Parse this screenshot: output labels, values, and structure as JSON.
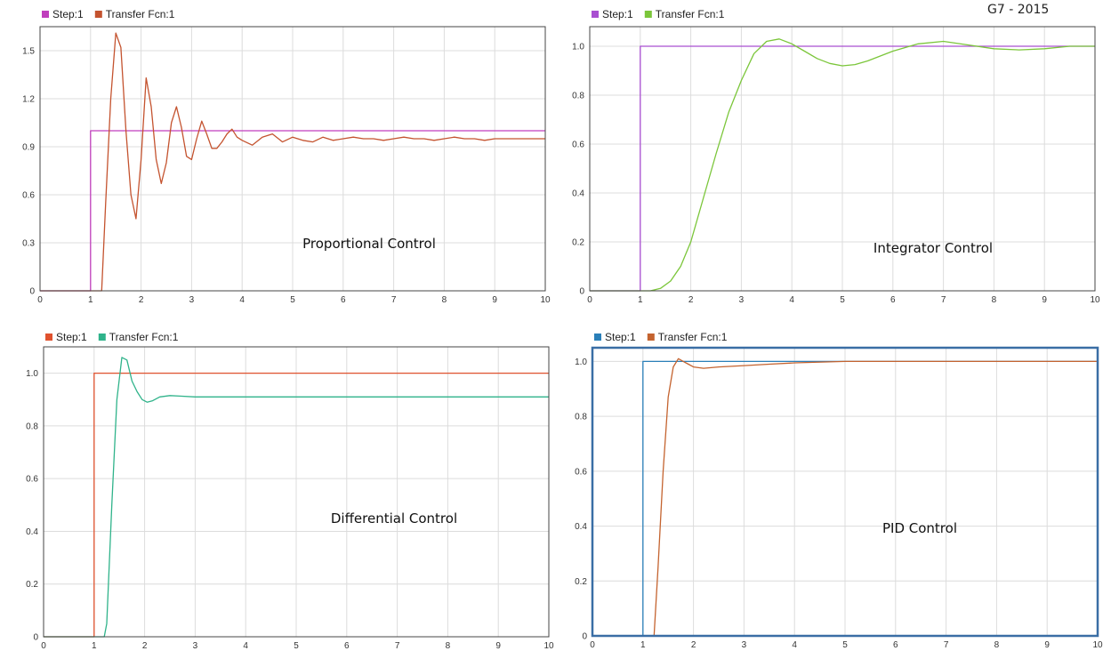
{
  "header": {
    "watermark": "G7 - 2015"
  },
  "chart_data": [
    {
      "type": "line",
      "title": "",
      "annotation": "Proportional Control",
      "xlim": [
        0,
        10
      ],
      "ylim": [
        0,
        1.65
      ],
      "xticks": [
        0,
        1,
        2,
        3,
        4,
        5,
        6,
        7,
        8,
        9,
        10
      ],
      "yticks": [
        0,
        0.3,
        0.6,
        0.9,
        1.2,
        1.5
      ],
      "ytick_labels": [
        "0",
        "0.3",
        "0.6",
        "0.9",
        "1.2",
        "1.5"
      ],
      "grid": true,
      "legend": "top-left",
      "series": [
        {
          "name": "Step:1",
          "color": "#c03fbd",
          "x": [
            0,
            1,
            1,
            10
          ],
          "y": [
            0,
            0,
            1,
            1
          ]
        },
        {
          "name": "Transfer Fcn:1",
          "color": "#c4532f",
          "x": [
            0,
            1.22,
            1.3,
            1.4,
            1.5,
            1.6,
            1.7,
            1.8,
            1.9,
            2.0,
            2.1,
            2.2,
            2.3,
            2.4,
            2.5,
            2.6,
            2.7,
            2.8,
            2.9,
            3.0,
            3.1,
            3.2,
            3.3,
            3.4,
            3.5,
            3.6,
            3.7,
            3.8,
            3.9,
            4.0,
            4.2,
            4.4,
            4.6,
            4.8,
            5.0,
            5.2,
            5.4,
            5.6,
            5.8,
            6.0,
            6.2,
            6.4,
            6.6,
            6.8,
            7.0,
            7.2,
            7.4,
            7.6,
            7.8,
            8.0,
            8.2,
            8.4,
            8.6,
            8.8,
            9.0,
            9.2,
            9.4,
            9.6,
            9.8,
            10
          ],
          "y": [
            0,
            0,
            0.55,
            1.2,
            1.61,
            1.52,
            1.0,
            0.6,
            0.45,
            0.82,
            1.33,
            1.15,
            0.82,
            0.67,
            0.8,
            1.05,
            1.15,
            1.02,
            0.84,
            0.82,
            0.95,
            1.06,
            0.98,
            0.89,
            0.89,
            0.93,
            0.98,
            1.01,
            0.96,
            0.94,
            0.91,
            0.96,
            0.98,
            0.93,
            0.96,
            0.94,
            0.93,
            0.96,
            0.94,
            0.95,
            0.96,
            0.95,
            0.95,
            0.94,
            0.95,
            0.96,
            0.95,
            0.95,
            0.94,
            0.95,
            0.96,
            0.95,
            0.95,
            0.94,
            0.95,
            0.95,
            0.95,
            0.95,
            0.95,
            0.95
          ]
        }
      ]
    },
    {
      "type": "line",
      "title": "",
      "annotation": "Integrator Control",
      "xlim": [
        0,
        10
      ],
      "ylim": [
        0,
        1.08
      ],
      "xticks": [
        0,
        1,
        2,
        3,
        4,
        5,
        6,
        7,
        8,
        9,
        10
      ],
      "yticks": [
        0,
        0.2,
        0.4,
        0.6,
        0.8,
        1.0
      ],
      "ytick_labels": [
        "0",
        "0.2",
        "0.4",
        "0.6",
        "0.8",
        "1.0"
      ],
      "grid": true,
      "legend": "top-left",
      "series": [
        {
          "name": "Step:1",
          "color": "#a94fd1",
          "x": [
            0,
            1,
            1,
            10
          ],
          "y": [
            0,
            0,
            1,
            1
          ]
        },
        {
          "name": "Transfer Fcn:1",
          "color": "#7bc63a",
          "x": [
            0,
            1.2,
            1.4,
            1.6,
            1.8,
            2.0,
            2.25,
            2.5,
            2.75,
            3.0,
            3.25,
            3.5,
            3.75,
            4.0,
            4.25,
            4.5,
            4.75,
            5.0,
            5.25,
            5.5,
            5.75,
            6.0,
            6.5,
            7.0,
            7.5,
            8.0,
            8.5,
            9.0,
            9.5,
            10
          ],
          "y": [
            0,
            0.0,
            0.01,
            0.04,
            0.1,
            0.2,
            0.38,
            0.56,
            0.73,
            0.86,
            0.97,
            1.02,
            1.03,
            1.01,
            0.98,
            0.95,
            0.93,
            0.92,
            0.925,
            0.94,
            0.96,
            0.98,
            1.01,
            1.02,
            1.005,
            0.99,
            0.985,
            0.99,
            1.0,
            1.0
          ]
        }
      ]
    },
    {
      "type": "line",
      "title": "",
      "annotation": "Differential Control",
      "xlim": [
        0,
        10
      ],
      "ylim": [
        0,
        1.1
      ],
      "xticks": [
        0,
        1,
        2,
        3,
        4,
        5,
        6,
        7,
        8,
        9,
        10
      ],
      "yticks": [
        0,
        0.2,
        0.4,
        0.6,
        0.8,
        1.0
      ],
      "ytick_labels": [
        "0",
        "0.2",
        "0.4",
        "0.6",
        "0.8",
        "1.0"
      ],
      "grid": true,
      "legend": "top-left",
      "series": [
        {
          "name": "Step:1",
          "color": "#e0522e",
          "x": [
            0,
            1,
            1,
            10
          ],
          "y": [
            0,
            0,
            1,
            1
          ]
        },
        {
          "name": "Transfer Fcn:1",
          "color": "#2fb38a",
          "x": [
            0,
            1.2,
            1.25,
            1.35,
            1.45,
            1.55,
            1.65,
            1.75,
            1.85,
            1.95,
            2.05,
            2.15,
            2.3,
            2.5,
            2.7,
            3.0,
            3.5,
            10
          ],
          "y": [
            0,
            0,
            0.05,
            0.5,
            0.9,
            1.06,
            1.05,
            0.97,
            0.93,
            0.9,
            0.89,
            0.895,
            0.91,
            0.915,
            0.913,
            0.91,
            0.91,
            0.91
          ]
        }
      ]
    },
    {
      "type": "line",
      "title": "",
      "annotation": "PID Control",
      "xlim": [
        0,
        10
      ],
      "ylim": [
        0,
        1.05
      ],
      "xticks": [
        0,
        1,
        2,
        3,
        4,
        5,
        6,
        7,
        8,
        9,
        10
      ],
      "yticks": [
        0,
        0.2,
        0.4,
        0.6,
        0.8,
        1.0
      ],
      "ytick_labels": [
        "0",
        "0.2",
        "0.4",
        "0.6",
        "0.8",
        "1.0"
      ],
      "grid": true,
      "legend": "top-left",
      "series": [
        {
          "name": "Step:1",
          "color": "#2a7fb8",
          "x": [
            0,
            1,
            1,
            10
          ],
          "y": [
            0,
            0,
            1,
            1
          ]
        },
        {
          "name": "Transfer Fcn:1",
          "color": "#c4632f",
          "x": [
            0,
            1.22,
            1.3,
            1.4,
            1.5,
            1.6,
            1.7,
            1.8,
            1.9,
            2.0,
            2.2,
            2.5,
            3.0,
            3.5,
            4.0,
            5.0,
            6.0,
            10
          ],
          "y": [
            0,
            0,
            0.25,
            0.6,
            0.87,
            0.98,
            1.01,
            1.0,
            0.99,
            0.98,
            0.975,
            0.98,
            0.985,
            0.99,
            0.995,
            1.0,
            1.0,
            1.0
          ]
        }
      ]
    }
  ]
}
